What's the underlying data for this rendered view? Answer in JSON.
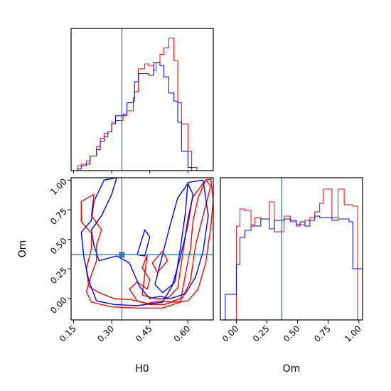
{
  "chart_data": {
    "type": "corner",
    "truth": {
      "H0": 0.34,
      "Om": 0.37
    },
    "colors": {
      "red_series": "#ff0000",
      "blue_series": "#0000ff",
      "truth_line": "#3a78b0",
      "axes": "#000000"
    },
    "axes": {
      "H0": {
        "label": "H0",
        "range": [
          0.14,
          0.7
        ],
        "ticks": [
          "0.15",
          "0.30",
          "0.45",
          "0.60"
        ],
        "tick_values": [
          0.15,
          0.3,
          0.45,
          0.6
        ]
      },
      "Om": {
        "label": "Om",
        "range": [
          -0.18,
          1.02
        ],
        "ticks": [
          "0.00",
          "0.25",
          "0.50",
          "0.75",
          "1.00"
        ],
        "tick_values": [
          0.0,
          0.25,
          0.5,
          0.75,
          1.0
        ]
      },
      "Om_hist_x": {
        "range": [
          -0.13,
          1.03
        ]
      }
    },
    "hist_H0": {
      "type": "step",
      "bin_edges": [
        0.14,
        0.166,
        0.18,
        0.2,
        0.215,
        0.24,
        0.255,
        0.27,
        0.285,
        0.3,
        0.315,
        0.345,
        0.36,
        0.385,
        0.39,
        0.405,
        0.43,
        0.445,
        0.465,
        0.475,
        0.49,
        0.505,
        0.525,
        0.545,
        0.56,
        0.575,
        0.6,
        0.615,
        0.635,
        0.66
      ],
      "series": [
        {
          "color": "red",
          "values": [
            0.0,
            0.03,
            0.04,
            0.06,
            0.09,
            0.15,
            0.2,
            0.23,
            0.24,
            0.3,
            0.31,
            0.34,
            0.37,
            0.43,
            0.49,
            0.63,
            0.66,
            0.65,
            0.62,
            0.67,
            0.72,
            0.76,
            0.82,
            0.68,
            0.42,
            0.29,
            0.12,
            0.02,
            0.0
          ]
        },
        {
          "color": "blue",
          "values": [
            0.0,
            0.01,
            0.03,
            0.04,
            0.09,
            0.13,
            0.18,
            0.21,
            0.24,
            0.29,
            0.34,
            0.35,
            0.42,
            0.45,
            0.55,
            0.6,
            0.6,
            0.59,
            0.67,
            0.67,
            0.65,
            0.58,
            0.48,
            0.43,
            0.3,
            0.12,
            0.02,
            0.0,
            0.0
          ]
        }
      ]
    },
    "hist_Om": {
      "type": "step",
      "bin_edges": [
        -0.13,
        -0.09,
        0.0,
        0.03,
        0.07,
        0.12,
        0.15,
        0.2,
        0.27,
        0.31,
        0.39,
        0.44,
        0.49,
        0.52,
        0.56,
        0.6,
        0.64,
        0.68,
        0.71,
        0.78,
        0.83,
        0.88,
        0.92,
        0.95,
        0.99,
        1.03
      ],
      "series": [
        {
          "color": "red",
          "values": [
            0.0,
            0.0,
            0.66,
            0.78,
            0.77,
            0.67,
            0.72,
            0.71,
            0.83,
            0.62,
            0.73,
            0.69,
            0.66,
            0.67,
            0.7,
            0.72,
            0.76,
            0.82,
            0.92,
            0.72,
            0.92,
            0.81,
            0.81,
            0.8,
            0.0
          ]
        },
        {
          "color": "blue",
          "values": [
            0.0,
            0.18,
            0.39,
            0.58,
            0.63,
            0.66,
            0.66,
            0.71,
            0.64,
            0.7,
            0.71,
            0.7,
            0.67,
            0.69,
            0.66,
            0.7,
            0.73,
            0.72,
            0.72,
            0.7,
            0.71,
            0.71,
            0.69,
            0.36,
            0.36
          ]
        }
      ]
    },
    "contours": [
      {
        "color": "red",
        "points": [
          [
            0.22,
            -0.03
          ],
          [
            0.3,
            -0.07
          ],
          [
            0.4,
            -0.08
          ],
          [
            0.5,
            -0.08
          ],
          [
            0.57,
            -0.03
          ],
          [
            0.59,
            0.2
          ],
          [
            0.61,
            0.42
          ],
          [
            0.62,
            0.65
          ],
          [
            0.64,
            0.85
          ],
          [
            0.67,
            1.0
          ],
          [
            0.69,
            1.01
          ],
          [
            0.7,
            0.83
          ],
          [
            0.69,
            0.6
          ],
          [
            0.67,
            0.3
          ],
          [
            0.64,
            0.08
          ],
          [
            0.6,
            -0.02
          ],
          [
            0.54,
            -0.03
          ],
          [
            0.49,
            -0.02
          ],
          [
            0.44,
            -0.04
          ],
          [
            0.38,
            -0.01
          ],
          [
            0.31,
            0.0
          ],
          [
            0.25,
            0.05
          ],
          [
            0.21,
            0.1
          ],
          [
            0.2,
            0.25
          ],
          [
            0.22,
            0.42
          ],
          [
            0.22,
            0.55
          ],
          [
            0.18,
            0.65
          ],
          [
            0.18,
            0.82
          ],
          [
            0.23,
            0.88
          ],
          [
            0.22,
            0.7
          ],
          [
            0.26,
            0.58
          ],
          [
            0.24,
            0.45
          ],
          [
            0.24,
            0.32
          ],
          [
            0.22,
            0.2
          ],
          [
            0.2,
            0.06
          ],
          [
            0.22,
            -0.03
          ]
        ]
      },
      {
        "color": "red",
        "points": [
          [
            0.42,
            0.03
          ],
          [
            0.47,
            0.0
          ],
          [
            0.52,
            0.0
          ],
          [
            0.56,
            0.09
          ],
          [
            0.58,
            0.38
          ],
          [
            0.6,
            0.68
          ],
          [
            0.62,
            0.86
          ],
          [
            0.67,
            1.0
          ],
          [
            0.69,
            0.95
          ],
          [
            0.66,
            0.7
          ],
          [
            0.63,
            0.45
          ],
          [
            0.61,
            0.15
          ],
          [
            0.58,
            0.01
          ],
          [
            0.51,
            -0.05
          ],
          [
            0.45,
            -0.05
          ],
          [
            0.4,
            -0.02
          ],
          [
            0.37,
            0.08
          ],
          [
            0.4,
            0.14
          ],
          [
            0.44,
            0.08
          ],
          [
            0.45,
            0.16
          ],
          [
            0.42,
            0.26
          ],
          [
            0.44,
            0.37
          ],
          [
            0.42,
            0.03
          ]
        ]
      },
      {
        "color": "blue",
        "points": [
          [
            0.24,
            -0.02
          ],
          [
            0.31,
            -0.05
          ],
          [
            0.4,
            -0.06
          ],
          [
            0.5,
            -0.03
          ],
          [
            0.55,
            0.15
          ],
          [
            0.57,
            0.42
          ],
          [
            0.59,
            0.72
          ],
          [
            0.6,
            0.98
          ],
          [
            0.66,
            1.0
          ],
          [
            0.68,
            0.7
          ],
          [
            0.66,
            0.4
          ],
          [
            0.63,
            0.18
          ],
          [
            0.59,
            0.04
          ],
          [
            0.53,
            0.0
          ],
          [
            0.49,
            0.02
          ],
          [
            0.45,
            0.0
          ],
          [
            0.41,
            0.1
          ],
          [
            0.37,
            0.3
          ],
          [
            0.32,
            0.36
          ],
          [
            0.25,
            0.32
          ],
          [
            0.23,
            0.45
          ],
          [
            0.22,
            0.58
          ],
          [
            0.26,
            0.7
          ],
          [
            0.3,
            0.88
          ],
          [
            0.32,
            1.02
          ],
          [
            0.27,
            1.0
          ],
          [
            0.23,
            0.82
          ],
          [
            0.22,
            0.66
          ],
          [
            0.18,
            0.56
          ],
          [
            0.19,
            0.35
          ],
          [
            0.21,
            0.15
          ],
          [
            0.24,
            -0.02
          ]
        ]
      },
      {
        "color": "blue",
        "points": [
          [
            0.47,
            0.12
          ],
          [
            0.5,
            0.37
          ],
          [
            0.53,
            0.62
          ],
          [
            0.56,
            0.85
          ],
          [
            0.6,
            0.97
          ],
          [
            0.62,
            0.88
          ],
          [
            0.6,
            0.62
          ],
          [
            0.57,
            0.35
          ],
          [
            0.54,
            0.12
          ],
          [
            0.5,
            0.05
          ],
          [
            0.47,
            0.12
          ]
        ]
      },
      {
        "color": "blue",
        "points": [
          [
            0.4,
            0.37
          ],
          [
            0.43,
            0.58
          ],
          [
            0.45,
            0.52
          ],
          [
            0.43,
            0.36
          ],
          [
            0.4,
            0.37
          ]
        ]
      },
      {
        "color": "red",
        "points": [
          [
            0.46,
            0.3
          ],
          [
            0.5,
            0.4
          ],
          [
            0.52,
            0.32
          ],
          [
            0.48,
            0.22
          ],
          [
            0.46,
            0.3
          ]
        ]
      }
    ]
  }
}
